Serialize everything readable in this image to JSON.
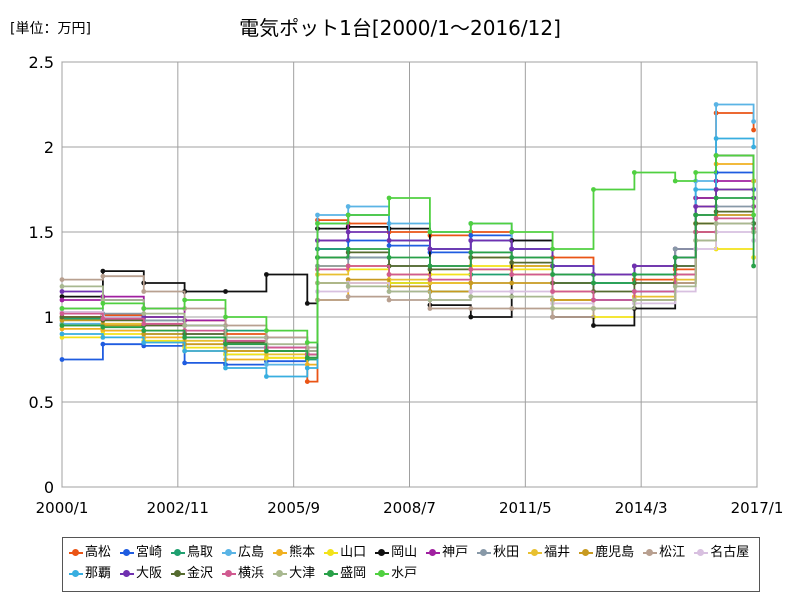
{
  "unit_label": "[単位：万円]",
  "title": "電気ポット1台[2000/1～2016/12]",
  "chart_data": {
    "type": "line",
    "title": "電気ポット1台[2000/1～2016/12]",
    "ylabel": "[単位：万円]",
    "xlabel": "",
    "x_ticks": [
      "2000/1",
      "2002/11",
      "2005/9",
      "2008/7",
      "2011/5",
      "2014/3",
      "2017/1"
    ],
    "y_ticks": [
      "0",
      "0.5",
      "1",
      "1.5",
      "2",
      "2.5"
    ],
    "ylim": [
      0,
      2.5
    ],
    "grid": true,
    "legend_position": "bottom",
    "x": [
      "2000/1",
      "2001/1",
      "2002/1",
      "2003/1",
      "2004/1",
      "2005/1",
      "2006/1",
      "2006/4",
      "2007/1",
      "2008/1",
      "2009/1",
      "2010/1",
      "2011/1",
      "2012/1",
      "2013/1",
      "2014/1",
      "2015/1",
      "2015/7",
      "2016/1",
      "2016/12"
    ],
    "series": [
      {
        "name": "高松",
        "color": "#ea5415",
        "values": [
          1.0,
          1.01,
          1.0,
          0.98,
          0.9,
          0.82,
          0.62,
          1.57,
          1.55,
          1.5,
          1.48,
          1.5,
          1.45,
          1.35,
          1.2,
          1.22,
          1.28,
          1.65,
          2.2,
          2.1
        ]
      },
      {
        "name": "宮崎",
        "color": "#1f5ce0",
        "values": [
          0.75,
          0.84,
          0.83,
          0.73,
          0.72,
          0.74,
          0.76,
          1.4,
          1.45,
          1.42,
          1.38,
          1.48,
          1.4,
          1.25,
          1.1,
          1.15,
          1.25,
          1.6,
          1.85,
          1.75
        ]
      },
      {
        "name": "鳥取",
        "color": "#20a070",
        "values": [
          0.99,
          1.0,
          0.98,
          0.95,
          0.92,
          0.88,
          0.75,
          1.4,
          1.35,
          1.2,
          1.15,
          1.25,
          1.3,
          1.2,
          1.25,
          1.3,
          1.4,
          1.7,
          1.75,
          1.55
        ]
      },
      {
        "name": "広島",
        "color": "#5ab4e5",
        "values": [
          0.96,
          0.92,
          0.9,
          0.88,
          0.78,
          0.72,
          0.76,
          1.6,
          1.65,
          1.55,
          1.5,
          1.55,
          1.45,
          1.3,
          1.2,
          1.25,
          1.3,
          1.8,
          2.25,
          2.15
        ]
      },
      {
        "name": "熊本",
        "color": "#f0b020",
        "values": [
          0.93,
          0.92,
          0.88,
          0.8,
          0.75,
          0.76,
          0.72,
          1.1,
          1.2,
          1.25,
          1.2,
          1.35,
          1.3,
          1.15,
          1.05,
          1.1,
          1.25,
          1.6,
          1.9,
          1.7
        ]
      },
      {
        "name": "山口",
        "color": "#f2e21a",
        "values": [
          0.88,
          0.9,
          0.86,
          0.82,
          0.78,
          0.76,
          0.8,
          1.3,
          1.28,
          1.2,
          1.25,
          1.3,
          1.28,
          1.05,
          1.0,
          1.1,
          1.2,
          1.55,
          1.4,
          1.35
        ]
      },
      {
        "name": "岡山",
        "color": "#111111",
        "values": [
          1.12,
          1.27,
          1.2,
          1.15,
          1.15,
          1.25,
          1.08,
          1.52,
          1.53,
          1.52,
          1.07,
          1.0,
          1.45,
          1.0,
          0.95,
          1.05,
          1.2,
          1.5,
          1.95,
          1.8
        ]
      },
      {
        "name": "神戸",
        "color": "#a020a0",
        "values": [
          1.1,
          1.12,
          1.05,
          0.98,
          0.85,
          0.8,
          0.78,
          1.45,
          1.6,
          1.45,
          1.4,
          1.45,
          1.4,
          1.3,
          1.25,
          1.3,
          1.4,
          1.7,
          1.8,
          1.65
        ]
      },
      {
        "name": "秋田",
        "color": "#8899a8",
        "values": [
          1.05,
          1.02,
          0.98,
          0.9,
          0.82,
          0.8,
          0.82,
          1.3,
          1.35,
          1.3,
          1.3,
          1.38,
          1.35,
          1.25,
          1.25,
          1.3,
          1.4,
          1.6,
          1.65,
          1.55
        ]
      },
      {
        "name": "福井",
        "color": "#e8c030",
        "values": [
          0.95,
          0.96,
          0.92,
          0.86,
          0.8,
          0.78,
          0.76,
          1.25,
          1.3,
          1.22,
          1.2,
          1.28,
          1.25,
          1.1,
          1.05,
          1.12,
          1.22,
          1.55,
          1.75,
          1.8
        ]
      },
      {
        "name": "鹿児島",
        "color": "#c89a20",
        "values": [
          0.98,
          0.95,
          0.9,
          0.84,
          0.8,
          0.8,
          0.78,
          1.2,
          1.22,
          1.18,
          1.15,
          1.2,
          1.2,
          1.1,
          1.05,
          1.1,
          1.2,
          1.5,
          1.6,
          1.5
        ]
      },
      {
        "name": "松江",
        "color": "#b8a090",
        "values": [
          1.22,
          1.24,
          1.15,
          1.05,
          0.95,
          0.88,
          0.82,
          1.1,
          1.12,
          1.1,
          1.05,
          1.05,
          1.05,
          1.0,
          1.05,
          1.1,
          1.2,
          1.45,
          1.55,
          1.5
        ]
      },
      {
        "name": "名古屋",
        "color": "#d8c0e0",
        "values": [
          1.03,
          1.0,
          0.95,
          0.9,
          0.85,
          0.82,
          0.8,
          1.15,
          1.2,
          1.15,
          1.1,
          1.15,
          1.15,
          1.08,
          1.05,
          1.08,
          1.15,
          1.4,
          1.5,
          1.45
        ]
      },
      {
        "name": "那覇",
        "color": "#38aee0",
        "values": [
          0.9,
          0.88,
          0.85,
          0.8,
          0.7,
          0.65,
          0.7,
          1.55,
          1.6,
          1.45,
          1.4,
          1.45,
          1.4,
          1.3,
          1.2,
          1.25,
          1.35,
          1.75,
          2.05,
          2.0
        ]
      },
      {
        "name": "大阪",
        "color": "#7030b0",
        "values": [
          1.15,
          1.1,
          1.0,
          0.95,
          0.88,
          0.82,
          0.8,
          1.45,
          1.5,
          1.45,
          1.4,
          1.45,
          1.4,
          1.3,
          1.25,
          1.3,
          1.35,
          1.65,
          1.75,
          1.7
        ]
      },
      {
        "name": "金沢",
        "color": "#556b2f",
        "values": [
          1.0,
          0.98,
          0.95,
          0.9,
          0.85,
          0.8,
          0.78,
          1.35,
          1.38,
          1.3,
          1.28,
          1.35,
          1.32,
          1.2,
          1.15,
          1.2,
          1.3,
          1.55,
          1.62,
          1.55
        ]
      },
      {
        "name": "横浜",
        "color": "#d05a90",
        "values": [
          1.02,
          0.99,
          0.96,
          0.92,
          0.86,
          0.82,
          0.78,
          1.28,
          1.3,
          1.25,
          1.22,
          1.28,
          1.25,
          1.15,
          1.1,
          1.15,
          1.25,
          1.5,
          1.58,
          1.52
        ]
      },
      {
        "name": "大津",
        "color": "#a8b890",
        "values": [
          1.18,
          1.1,
          1.02,
          0.95,
          0.88,
          0.84,
          0.8,
          1.2,
          1.18,
          1.15,
          1.1,
          1.12,
          1.12,
          1.05,
          1.05,
          1.1,
          1.18,
          1.45,
          1.55,
          1.5
        ]
      },
      {
        "name": "盛岡",
        "color": "#28a048",
        "values": [
          0.95,
          0.94,
          0.92,
          0.88,
          0.84,
          0.8,
          0.76,
          1.35,
          1.4,
          1.35,
          1.3,
          1.38,
          1.35,
          1.25,
          1.2,
          1.25,
          1.35,
          1.6,
          1.7,
          1.3
        ]
      },
      {
        "name": "水戸",
        "color": "#50d040",
        "values": [
          1.05,
          1.08,
          1.05,
          1.1,
          1.0,
          0.92,
          0.85,
          1.55,
          1.6,
          1.7,
          1.5,
          1.55,
          1.5,
          1.4,
          1.75,
          1.85,
          1.8,
          1.85,
          1.95,
          1.6
        ]
      }
    ]
  }
}
